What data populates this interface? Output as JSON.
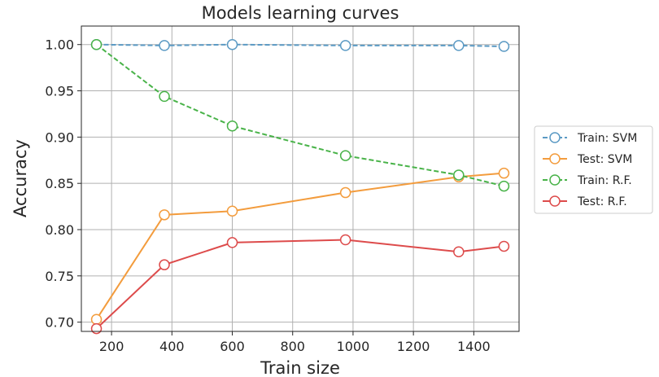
{
  "chart_data": {
    "type": "line",
    "title": "Models learning curves",
    "xlabel": "Train size",
    "ylabel": "Accuracy",
    "xlim": [
      100,
      1550
    ],
    "ylim": [
      0.69,
      1.02
    ],
    "xticks": [
      200,
      400,
      600,
      800,
      1000,
      1200,
      1400
    ],
    "yticks": [
      "0.70",
      "0.75",
      "0.80",
      "0.85",
      "0.90",
      "0.95",
      "1.00"
    ],
    "grid": true,
    "legend_position": "outside-right",
    "x": [
      150,
      375,
      600,
      975,
      1350,
      1500
    ],
    "series": [
      {
        "name": "Train: SVM",
        "color": "#5b9ac4",
        "dashed": true,
        "values": [
          1.0,
          0.999,
          1.0,
          0.999,
          0.999,
          0.998
        ]
      },
      {
        "name": "Test: SVM",
        "color": "#f39c3d",
        "dashed": false,
        "values": [
          0.703,
          0.816,
          0.82,
          0.84,
          0.857,
          0.861
        ]
      },
      {
        "name": "Train: R.F.",
        "color": "#49b349",
        "dashed": true,
        "values": [
          1.0,
          0.944,
          0.912,
          0.88,
          0.859,
          0.847
        ]
      },
      {
        "name": "Test: R.F.",
        "color": "#dd4b4b",
        "dashed": false,
        "values": [
          0.693,
          0.762,
          0.786,
          0.789,
          0.776,
          0.782
        ]
      }
    ]
  }
}
